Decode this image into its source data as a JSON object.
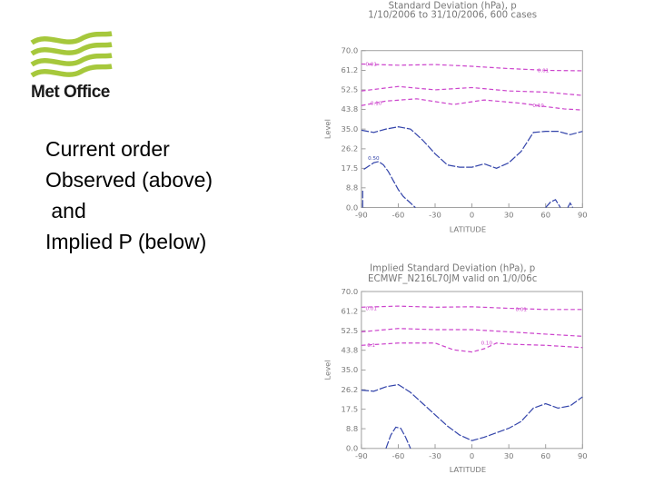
{
  "brand": {
    "name": "Met Office",
    "logo_icon": "met-office-wave-logo",
    "logo_color": "#a6c83c"
  },
  "caption": {
    "lines": [
      "Current order",
      "Observed (above)",
      " and",
      "Implied P (below)"
    ]
  },
  "chart_data": [
    {
      "type": "line",
      "title": "Standard Deviation (hPa), p",
      "subtitle": "1/10/2006 to 31/10/2006,  600 cases",
      "xlabel": "LATITUDE",
      "ylabel": "Level",
      "xticks": [
        "-90",
        "-60",
        "-30",
        "0",
        "30",
        "60",
        "90"
      ],
      "yticks": [
        "0.0",
        "8.8",
        "17.5",
        "26.2",
        "35.0",
        "43.8",
        "52.5",
        "61.2",
        "70.0"
      ],
      "xlim": [
        -90,
        90
      ],
      "ylim": [
        0,
        70
      ],
      "contours": [
        {
          "label": "0.01",
          "style": "dashed",
          "color": "#cc44cc",
          "x": [
            -90,
            -60,
            -30,
            0,
            30,
            50,
            60,
            90
          ],
          "y": [
            64.0,
            63.5,
            63.8,
            63.0,
            62.0,
            61.5,
            61.2,
            61.0
          ],
          "labels_at": [
            {
              "x": -82,
              "y": 64,
              "text": "0.01"
            },
            {
              "x": 58,
              "y": 61.2,
              "text": "0.01"
            }
          ]
        },
        {
          "label": "",
          "style": "dashed",
          "color": "#cc44cc",
          "x": [
            -90,
            -60,
            -30,
            0,
            30,
            60,
            90
          ],
          "y": [
            52.0,
            54.0,
            52.5,
            53.5,
            52.0,
            51.5,
            50.0
          ]
        },
        {
          "label": "0.10",
          "style": "dashed",
          "color": "#cc44cc",
          "x": [
            -90,
            -70,
            -45,
            -15,
            10,
            40,
            60,
            75,
            90
          ],
          "y": [
            45.5,
            47.5,
            48.5,
            46.0,
            48.0,
            46.5,
            45.0,
            44.0,
            43.5
          ],
          "labels_at": [
            {
              "x": -78,
              "y": 46.5,
              "text": "0.10"
            },
            {
              "x": 54,
              "y": 45.5,
              "text": "0.10"
            }
          ]
        },
        {
          "label": "",
          "style": "solid-dashed",
          "color": "#3344aa",
          "x": [
            -90,
            -80,
            -70,
            -60,
            -50,
            -40,
            -30,
            -20,
            -10,
            0,
            10,
            20,
            30,
            40,
            50,
            60,
            70,
            80,
            90
          ],
          "y": [
            34.5,
            33.5,
            35.0,
            36.0,
            35.0,
            30.0,
            24.0,
            19.0,
            18.0,
            18.0,
            19.5,
            17.5,
            20.0,
            25.0,
            33.5,
            34.0,
            34.0,
            32.5,
            34.0
          ]
        },
        {
          "label": "0.50",
          "style": "solid-dashed",
          "color": "#3344aa",
          "x": [
            -88,
            -84,
            -80,
            -76,
            -72,
            -68,
            -64,
            -60,
            -56,
            -52,
            -48,
            -46
          ],
          "y": [
            17.0,
            18.5,
            20.0,
            20.5,
            19.0,
            16.0,
            12.0,
            8.0,
            5.0,
            3.0,
            1.0,
            0.0
          ],
          "labels_at": [
            {
              "x": -80,
              "y": 22,
              "text": "0.50"
            }
          ]
        },
        {
          "label": "",
          "style": "solid-dashed",
          "color": "#3344aa",
          "x": [
            -89,
            -89
          ],
          "y": [
            0.0,
            8.0
          ]
        },
        {
          "label": "",
          "style": "solid-dashed",
          "color": "#3344aa",
          "x": [
            60,
            64,
            68,
            72
          ],
          "y": [
            0.0,
            2.5,
            3.5,
            0.0
          ]
        },
        {
          "label": "",
          "style": "solid-dashed",
          "color": "#3344aa",
          "x": [
            78,
            80,
            82
          ],
          "y": [
            0.0,
            2.0,
            0.0
          ]
        }
      ]
    },
    {
      "type": "line",
      "title": "Implied Standard Deviation (hPa), p",
      "subtitle": "ECMWF_N216L70JM valid on 1/0/06c",
      "xlabel": "LATITUDE",
      "ylabel": "Level",
      "xticks": [
        "-90",
        "-60",
        "-30",
        "0",
        "30",
        "60",
        "90"
      ],
      "yticks": [
        "0.0",
        "8.8",
        "17.5",
        "26.2",
        "35.0",
        "43.8",
        "52.5",
        "61.2",
        "70.0"
      ],
      "xlim": [
        -90,
        90
      ],
      "ylim": [
        0,
        70
      ],
      "contours": [
        {
          "label": "0.01",
          "style": "dashed",
          "color": "#cc44cc",
          "x": [
            -90,
            -60,
            -30,
            0,
            30,
            60,
            90
          ],
          "y": [
            63.0,
            63.5,
            63.0,
            63.2,
            62.5,
            62.0,
            62.0
          ],
          "labels_at": [
            {
              "x": -82,
              "y": 62.5,
              "text": "0.01"
            },
            {
              "x": 40,
              "y": 62.0,
              "text": "0.01"
            }
          ]
        },
        {
          "label": "",
          "style": "dashed",
          "color": "#cc44cc",
          "x": [
            -90,
            -60,
            -30,
            0,
            30,
            60,
            90
          ],
          "y": [
            52.0,
            53.5,
            53.0,
            53.0,
            52.0,
            51.0,
            50.0
          ]
        },
        {
          "label": "0.10",
          "style": "dashed",
          "color": "#cc44cc",
          "x": [
            -90,
            -60,
            -30,
            -15,
            0,
            10,
            20,
            30,
            60,
            90
          ],
          "y": [
            46.0,
            47.0,
            47.0,
            44.0,
            43.0,
            44.5,
            47.0,
            46.5,
            46.0,
            45.0
          ],
          "labels_at": [
            {
              "x": -82,
              "y": 46.0,
              "text": "0.1"
            },
            {
              "x": 12,
              "y": 47.0,
              "text": "0.10"
            }
          ]
        },
        {
          "label": "",
          "style": "solid-dashed",
          "color": "#3344aa",
          "x": [
            -90,
            -80,
            -70,
            -60,
            -50,
            -40,
            -30,
            -20,
            -10,
            0,
            10,
            20,
            30,
            40,
            50,
            60,
            70,
            80,
            90
          ],
          "y": [
            26.0,
            25.5,
            27.5,
            28.5,
            25.0,
            20.0,
            15.0,
            10.0,
            6.0,
            3.5,
            5.0,
            7.0,
            9.0,
            12.0,
            18.0,
            20.0,
            18.0,
            19.0,
            23.0
          ]
        },
        {
          "label": "",
          "style": "solid-dashed",
          "color": "#3344aa",
          "x": [
            -70,
            -66,
            -62,
            -58,
            -54,
            -50
          ],
          "y": [
            0.0,
            6.0,
            9.5,
            9.0,
            5.0,
            0.0
          ]
        }
      ]
    }
  ]
}
